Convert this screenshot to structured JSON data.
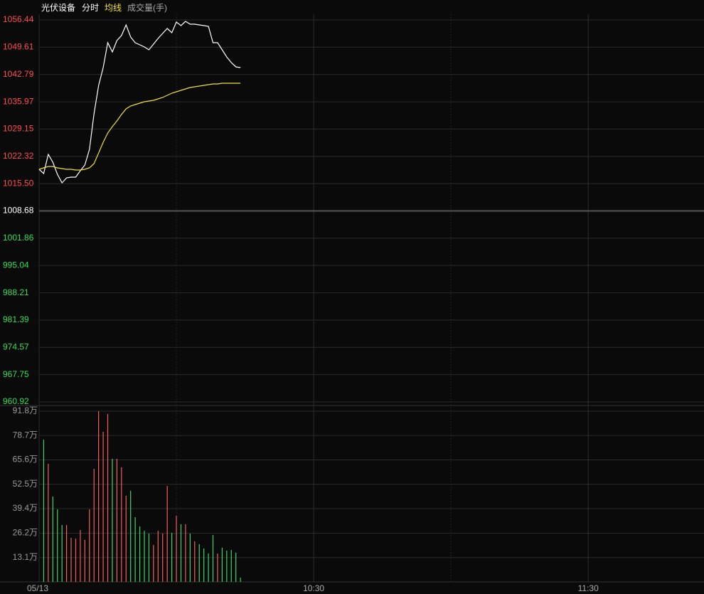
{
  "chart_data": [
    {
      "type": "line",
      "title": "光伏设备",
      "subtitle": "分时",
      "x": [
        0,
        1,
        2,
        3,
        4,
        5,
        6,
        7,
        8,
        9,
        10,
        11,
        12,
        13,
        14,
        15,
        16,
        17,
        18,
        19,
        20,
        21,
        22,
        23,
        24,
        25,
        26,
        27,
        28,
        29,
        30,
        31,
        32,
        33,
        34,
        35,
        36,
        37,
        38,
        39,
        40,
        41,
        42,
        43,
        44
      ],
      "series": [
        {
          "name": "分时",
          "color": "#ffffff",
          "values": [
            1019.09,
            1018.02,
            1022.82,
            1020.86,
            1017.84,
            1015.71,
            1016.95,
            1017.13,
            1017.13,
            1018.73,
            1020.15,
            1024.07,
            1032.96,
            1040.07,
            1044.52,
            1050.75,
            1048.44,
            1051.28,
            1052.53,
            1055.19,
            1052.17,
            1050.75,
            1050.21,
            1049.68,
            1048.97,
            1050.39,
            1051.81,
            1053.06,
            1054.31,
            1053.24,
            1055.91,
            1055.02,
            1056.08,
            1055.37,
            1055.37,
            1055.19,
            1055.02,
            1054.84,
            1050.75,
            1050.75,
            1048.97,
            1047.19,
            1045.77,
            1044.7,
            1044.52
          ]
        },
        {
          "name": "均线",
          "color": "#f0e030",
          "values": [
            1019.09,
            1019.44,
            1019.8,
            1019.8,
            1019.44,
            1019.26,
            1019.09,
            1019.09,
            1018.91,
            1018.91,
            1019.09,
            1019.44,
            1020.51,
            1023.18,
            1025.84,
            1028.16,
            1029.76,
            1031.18,
            1032.78,
            1034.2,
            1034.91,
            1035.27,
            1035.63,
            1035.98,
            1036.16,
            1036.34,
            1036.7,
            1037.05,
            1037.58,
            1038.12,
            1038.47,
            1038.83,
            1039.18,
            1039.54,
            1039.72,
            1039.9,
            1040.07,
            1040.25,
            1040.43,
            1040.43,
            1040.61,
            1040.61,
            1040.61,
            1040.61,
            1040.61
          ]
        }
      ],
      "xlim": [
        0,
        145.3
      ],
      "ylim": [
        960.92,
        1056.44
      ],
      "yticks": [
        1056.44,
        1049.61,
        1042.79,
        1035.97,
        1029.15,
        1022.32,
        {
          "value": 1015.5,
          "label": "1015.50"
        },
        1008.68,
        1001.86,
        995.04,
        988.21,
        981.39,
        974.57,
        967.75,
        960.92
      ],
      "up_color": "#ff4d4d",
      "down_color": "#33dd55",
      "grid": true
    },
    {
      "type": "bar",
      "title": "成交量(手)",
      "x": [
        0,
        1,
        2,
        3,
        4,
        5,
        6,
        7,
        8,
        9,
        10,
        11,
        12,
        13,
        14,
        15,
        16,
        17,
        18,
        19,
        20,
        21,
        22,
        23,
        24,
        25,
        26,
        27,
        28,
        29,
        30,
        31,
        32,
        33,
        34,
        35,
        36,
        37,
        38,
        39,
        40,
        41,
        42,
        43,
        44
      ],
      "values": [
        null,
        76.5,
        63.5,
        45.9,
        39.0,
        30.6,
        30.6,
        23.7,
        23.3,
        27.9,
        22.6,
        39.0,
        60.8,
        91.8,
        80.7,
        90.3,
        66.2,
        66.2,
        61.6,
        46.3,
        49.0,
        34.8,
        29.8,
        27.5,
        26.0,
        19.9,
        27.5,
        26.0,
        51.6,
        26.4,
        35.6,
        31.0,
        31.0,
        26.0,
        21.8,
        20.3,
        18.0,
        15.3,
        25.2,
        15.3,
        18.4,
        16.8,
        17.2,
        15.7,
        2.3
      ],
      "xlim": [
        0,
        145.3
      ],
      "xticks": [
        {
          "value": 0,
          "label": "05/13"
        },
        {
          "value": 60,
          "label": "10:30"
        },
        {
          "value": 120,
          "label": "11:30"
        }
      ],
      "ylim": [
        0,
        91.8
      ],
      "yticks": [
        {
          "value": 91.8,
          "label": "91.8万"
        },
        {
          "value": 78.7,
          "label": "78.7万"
        },
        {
          "value": 65.6,
          "label": "65.6万"
        },
        {
          "value": 52.5,
          "label": "52.5万"
        },
        {
          "value": 39.4,
          "label": "39.4万"
        },
        {
          "value": 26.2,
          "label": "26.2万"
        },
        {
          "value": 13.1,
          "label": "13.1万"
        }
      ],
      "up_color": "#f2605a",
      "down_color": "#3fd46a",
      "grid": true
    }
  ]
}
